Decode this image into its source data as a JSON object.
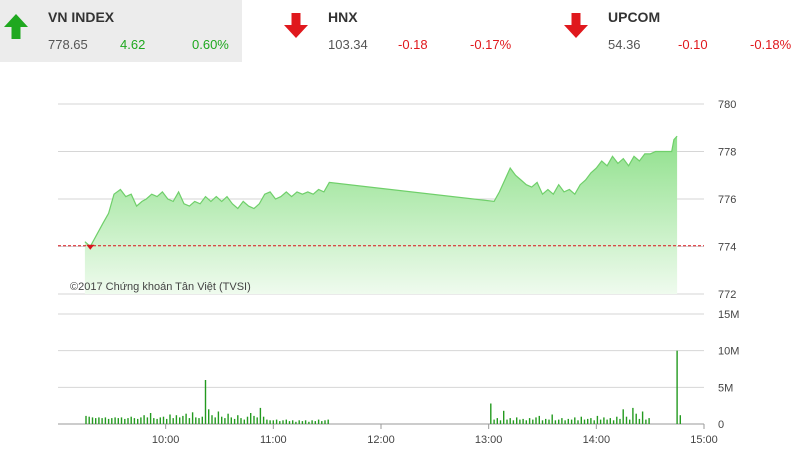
{
  "indices": [
    {
      "name": "VN INDEX",
      "value": "778.65",
      "change": "4.62",
      "pct": "0.60%",
      "direction": "up"
    },
    {
      "name": "HNX",
      "value": "103.34",
      "change": "-0.18",
      "pct": "-0.17%",
      "direction": "down"
    },
    {
      "name": "UPCOM",
      "value": "54.36",
      "change": "-0.10",
      "pct": "-0.18%",
      "direction": "down"
    }
  ],
  "colors": {
    "up": "#1fa81f",
    "down": "#e0181d",
    "area_top": "#8ee08a",
    "area_bottom": "#effbee",
    "volume": "#239a1f",
    "reference": "#d9141c"
  },
  "chart_data": {
    "watermark": "©2017 Chứng khoán Tân Việt (TVSI)",
    "price_chart": {
      "type": "area",
      "ylim": [
        772,
        780
      ],
      "yticks": [
        "780",
        "778",
        "776",
        "774",
        "772"
      ],
      "ytick_values": [
        780,
        778,
        776,
        774,
        772
      ],
      "reference": 774.03,
      "series": [
        {
          "values": [
            [
              9.25,
              774.2
            ],
            [
              9.3,
              774.0
            ],
            [
              9.36,
              774.5
            ],
            [
              9.42,
              775.0
            ],
            [
              9.47,
              775.4
            ],
            [
              9.52,
              776.2
            ],
            [
              9.58,
              776.4
            ],
            [
              9.63,
              776.1
            ],
            [
              9.68,
              776.2
            ],
            [
              9.73,
              775.7
            ],
            [
              9.78,
              775.9
            ],
            [
              9.82,
              776.0
            ],
            [
              9.87,
              776.2
            ],
            [
              9.92,
              776.1
            ],
            [
              9.97,
              776.3
            ],
            [
              10.02,
              776.0
            ],
            [
              10.07,
              775.9
            ],
            [
              10.12,
              776.3
            ],
            [
              10.17,
              775.8
            ],
            [
              10.22,
              775.7
            ],
            [
              10.27,
              775.9
            ],
            [
              10.32,
              775.8
            ],
            [
              10.37,
              776.1
            ],
            [
              10.42,
              775.9
            ],
            [
              10.47,
              776.1
            ],
            [
              10.52,
              775.9
            ],
            [
              10.57,
              776.1
            ],
            [
              10.62,
              775.8
            ],
            [
              10.67,
              775.6
            ],
            [
              10.72,
              775.9
            ],
            [
              10.77,
              775.7
            ],
            [
              10.82,
              775.6
            ],
            [
              10.87,
              775.8
            ],
            [
              10.92,
              776.2
            ],
            [
              10.97,
              776.3
            ],
            [
              11.02,
              776.0
            ],
            [
              11.07,
              776.1
            ],
            [
              11.12,
              776.3
            ],
            [
              11.17,
              776.1
            ],
            [
              11.22,
              776.3
            ],
            [
              11.27,
              776.2
            ],
            [
              11.32,
              776.3
            ],
            [
              11.37,
              776.2
            ],
            [
              11.42,
              776.4
            ],
            [
              11.47,
              776.3
            ],
            [
              11.52,
              776.7
            ],
            [
              13.05,
              775.9
            ],
            [
              13.1,
              776.3
            ],
            [
              13.15,
              776.8
            ],
            [
              13.2,
              777.3
            ],
            [
              13.25,
              777.0
            ],
            [
              13.3,
              776.8
            ],
            [
              13.35,
              776.6
            ],
            [
              13.4,
              776.5
            ],
            [
              13.45,
              776.7
            ],
            [
              13.5,
              776.2
            ],
            [
              13.55,
              776.4
            ],
            [
              13.6,
              776.2
            ],
            [
              13.65,
              776.6
            ],
            [
              13.7,
              776.3
            ],
            [
              13.75,
              776.4
            ],
            [
              13.8,
              776.2
            ],
            [
              13.85,
              776.6
            ],
            [
              13.9,
              776.8
            ],
            [
              13.95,
              777.1
            ],
            [
              14.0,
              777.3
            ],
            [
              14.05,
              777.6
            ],
            [
              14.1,
              777.4
            ],
            [
              14.15,
              777.8
            ],
            [
              14.2,
              777.5
            ],
            [
              14.25,
              777.7
            ],
            [
              14.3,
              777.4
            ],
            [
              14.35,
              777.8
            ],
            [
              14.4,
              777.6
            ],
            [
              14.45,
              777.9
            ],
            [
              14.5,
              777.9
            ],
            [
              14.55,
              778.0
            ],
            [
              14.6,
              778.0
            ],
            [
              14.65,
              778.0
            ],
            [
              14.7,
              778.0
            ],
            [
              14.72,
              778.5
            ],
            [
              14.75,
              778.65
            ]
          ]
        }
      ]
    },
    "volume_chart": {
      "type": "bar",
      "ylim": [
        0,
        15
      ],
      "yticks": [
        "15M",
        "10M",
        "5M",
        "0"
      ],
      "ytick_values": [
        15,
        10,
        5,
        0
      ],
      "bars": [
        [
          9.26,
          1.1
        ],
        [
          9.29,
          1.0
        ],
        [
          9.32,
          0.9
        ],
        [
          9.35,
          0.8
        ],
        [
          9.38,
          0.9
        ],
        [
          9.41,
          0.8
        ],
        [
          9.44,
          0.9
        ],
        [
          9.47,
          0.7
        ],
        [
          9.5,
          0.8
        ],
        [
          9.53,
          0.9
        ],
        [
          9.56,
          0.8
        ],
        [
          9.59,
          0.9
        ],
        [
          9.62,
          0.7
        ],
        [
          9.65,
          0.8
        ],
        [
          9.68,
          1.0
        ],
        [
          9.71,
          0.8
        ],
        [
          9.74,
          0.7
        ],
        [
          9.77,
          0.9
        ],
        [
          9.8,
          1.2
        ],
        [
          9.83,
          0.9
        ],
        [
          9.86,
          1.5
        ],
        [
          9.89,
          0.8
        ],
        [
          9.92,
          0.7
        ],
        [
          9.95,
          0.9
        ],
        [
          9.98,
          1.0
        ],
        [
          10.01,
          0.7
        ],
        [
          10.04,
          1.3
        ],
        [
          10.07,
          0.8
        ],
        [
          10.1,
          1.2
        ],
        [
          10.13,
          0.9
        ],
        [
          10.16,
          1.1
        ],
        [
          10.19,
          1.4
        ],
        [
          10.22,
          0.8
        ],
        [
          10.25,
          1.6
        ],
        [
          10.28,
          0.9
        ],
        [
          10.31,
          0.8
        ],
        [
          10.34,
          1.0
        ],
        [
          10.37,
          6.0
        ],
        [
          10.4,
          2.0
        ],
        [
          10.43,
          1.2
        ],
        [
          10.46,
          0.9
        ],
        [
          10.49,
          1.7
        ],
        [
          10.52,
          1.0
        ],
        [
          10.55,
          0.8
        ],
        [
          10.58,
          1.4
        ],
        [
          10.61,
          0.9
        ],
        [
          10.64,
          0.7
        ],
        [
          10.67,
          1.2
        ],
        [
          10.7,
          0.8
        ],
        [
          10.73,
          0.6
        ],
        [
          10.76,
          1.0
        ],
        [
          10.79,
          1.5
        ],
        [
          10.82,
          1.1
        ],
        [
          10.85,
          0.9
        ],
        [
          10.88,
          2.2
        ],
        [
          10.91,
          1.0
        ],
        [
          10.94,
          0.6
        ],
        [
          10.97,
          0.5
        ],
        [
          11.0,
          0.5
        ],
        [
          11.03,
          0.6
        ],
        [
          11.06,
          0.4
        ],
        [
          11.09,
          0.5
        ],
        [
          11.12,
          0.6
        ],
        [
          11.15,
          0.4
        ],
        [
          11.18,
          0.5
        ],
        [
          11.21,
          0.3
        ],
        [
          11.24,
          0.5
        ],
        [
          11.27,
          0.4
        ],
        [
          11.3,
          0.5
        ],
        [
          11.33,
          0.3
        ],
        [
          11.36,
          0.5
        ],
        [
          11.39,
          0.4
        ],
        [
          11.42,
          0.6
        ],
        [
          11.45,
          0.4
        ],
        [
          11.48,
          0.5
        ],
        [
          11.51,
          0.6
        ],
        [
          13.02,
          2.8
        ],
        [
          13.05,
          0.6
        ],
        [
          13.08,
          0.8
        ],
        [
          13.11,
          0.5
        ],
        [
          13.14,
          1.8
        ],
        [
          13.17,
          0.6
        ],
        [
          13.2,
          0.8
        ],
        [
          13.23,
          0.5
        ],
        [
          13.26,
          0.9
        ],
        [
          13.29,
          0.6
        ],
        [
          13.32,
          0.7
        ],
        [
          13.35,
          0.5
        ],
        [
          13.38,
          0.8
        ],
        [
          13.41,
          0.6
        ],
        [
          13.44,
          0.9
        ],
        [
          13.47,
          1.1
        ],
        [
          13.5,
          0.5
        ],
        [
          13.53,
          0.7
        ],
        [
          13.56,
          0.6
        ],
        [
          13.59,
          1.3
        ],
        [
          13.62,
          0.5
        ],
        [
          13.65,
          0.6
        ],
        [
          13.68,
          0.8
        ],
        [
          13.71,
          0.5
        ],
        [
          13.74,
          0.7
        ],
        [
          13.77,
          0.6
        ],
        [
          13.8,
          0.9
        ],
        [
          13.83,
          0.5
        ],
        [
          13.86,
          1.0
        ],
        [
          13.89,
          0.6
        ],
        [
          13.92,
          0.7
        ],
        [
          13.95,
          0.8
        ],
        [
          13.98,
          0.5
        ],
        [
          14.01,
          1.1
        ],
        [
          14.04,
          0.6
        ],
        [
          14.07,
          0.9
        ],
        [
          14.1,
          0.6
        ],
        [
          14.13,
          0.8
        ],
        [
          14.16,
          0.5
        ],
        [
          14.19,
          1.0
        ],
        [
          14.22,
          0.7
        ],
        [
          14.25,
          2.0
        ],
        [
          14.28,
          1.0
        ],
        [
          14.31,
          0.6
        ],
        [
          14.34,
          2.2
        ],
        [
          14.37,
          1.4
        ],
        [
          14.4,
          0.7
        ],
        [
          14.43,
          1.7
        ],
        [
          14.46,
          0.6
        ],
        [
          14.49,
          0.8
        ],
        [
          14.75,
          10.0
        ],
        [
          14.78,
          1.2
        ]
      ]
    },
    "x_axis": {
      "labels": [
        "10:00",
        "11:00",
        "12:00",
        "13:00",
        "14:00",
        "15:00"
      ],
      "values": [
        10,
        11,
        12,
        13,
        14,
        15
      ],
      "xlim": [
        9.0,
        15.0
      ]
    }
  }
}
